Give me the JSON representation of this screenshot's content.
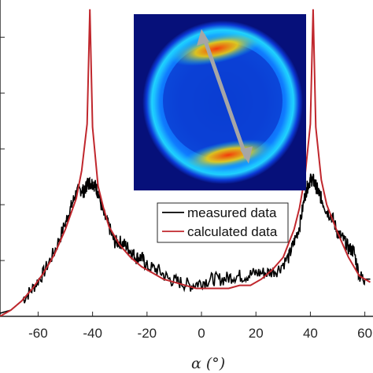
{
  "chart_data": {
    "type": "line",
    "xlabel": "α (°)",
    "ylabel": "",
    "xlim": [
      -74,
      63
    ],
    "ylim": [
      0,
      1.02
    ],
    "x_ticks": [
      -60,
      -40,
      -20,
      0,
      20,
      40,
      60
    ],
    "x_tick_labels": [
      "-60",
      "-40",
      "-20",
      "0",
      "20",
      "40",
      "60"
    ],
    "y_ticks": [
      0.18,
      0.36,
      0.54,
      0.72,
      0.9
    ],
    "grid": false,
    "legend_position": "center-right",
    "series": [
      {
        "name": "measured data",
        "color": "#000000",
        "x": [
          -74,
          -70,
          -66,
          -62,
          -58,
          -54,
          -50,
          -48,
          -46,
          -44,
          -43,
          -42,
          -41,
          -40,
          -39,
          -38,
          -36,
          -34,
          -32,
          -30,
          -28,
          -26,
          -24,
          -22,
          -20,
          -16,
          -12,
          -8,
          -4,
          0,
          4,
          8,
          12,
          16,
          20,
          24,
          28,
          32,
          34,
          36,
          38,
          39,
          40,
          41,
          42,
          43,
          44,
          46,
          48,
          50,
          52,
          54,
          56,
          58,
          60,
          62
        ],
        "y": [
          0.01,
          0.02,
          0.05,
          0.09,
          0.14,
          0.21,
          0.3,
          0.35,
          0.4,
          0.41,
          0.4,
          0.43,
          0.43,
          0.43,
          0.42,
          0.4,
          0.33,
          0.29,
          0.24,
          0.24,
          0.23,
          0.21,
          0.19,
          0.19,
          0.16,
          0.15,
          0.12,
          0.11,
          0.1,
          0.11,
          0.12,
          0.12,
          0.13,
          0.13,
          0.14,
          0.14,
          0.15,
          0.19,
          0.24,
          0.29,
          0.39,
          0.42,
          0.44,
          0.44,
          0.42,
          0.4,
          0.38,
          0.34,
          0.32,
          0.27,
          0.25,
          0.22,
          0.21,
          0.13,
          0.12,
          0.12
        ]
      },
      {
        "name": "calculated data",
        "color": "#c0272d",
        "x": [
          -74,
          -70,
          -66,
          -62,
          -58,
          -54,
          -50,
          -46,
          -44,
          -42,
          -41,
          -40,
          -38,
          -36,
          -34,
          -30,
          -26,
          -22,
          -18,
          -14,
          -10,
          -6,
          -2,
          2,
          6,
          10,
          14,
          18,
          22,
          26,
          30,
          34,
          36,
          38,
          40,
          41,
          42,
          44,
          46,
          50,
          54,
          58,
          62
        ],
        "y": [
          0.0,
          0.02,
          0.05,
          0.09,
          0.14,
          0.2,
          0.28,
          0.38,
          0.47,
          0.62,
          0.99,
          0.61,
          0.42,
          0.35,
          0.29,
          0.23,
          0.19,
          0.16,
          0.14,
          0.12,
          0.11,
          0.1,
          0.09,
          0.09,
          0.09,
          0.09,
          0.1,
          0.1,
          0.12,
          0.15,
          0.19,
          0.28,
          0.35,
          0.45,
          0.62,
          0.99,
          0.61,
          0.44,
          0.36,
          0.27,
          0.19,
          0.13,
          0.11
        ]
      }
    ],
    "inset": {
      "type": "image",
      "description_colors": [
        "#0b0f8c",
        "#1a5cff",
        "#00c8ff",
        "#ffe600",
        "#ff2a00"
      ]
    }
  }
}
